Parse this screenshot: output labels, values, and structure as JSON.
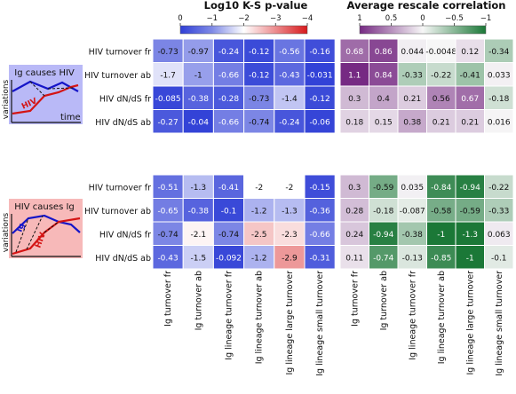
{
  "chart_data": [
    {
      "type": "heatmap",
      "title": "Log10 K-S p-value",
      "colorbar_ticks": [
        "0",
        "−1",
        "−2",
        "−3",
        "−4"
      ],
      "colorbar_range": [
        0,
        -4
      ],
      "colormap": [
        "#2f3fd6",
        "#ffffff",
        "#d7191c"
      ],
      "rows": [
        "HIV turnover fr",
        "HIV turnover ab",
        "HIV dN/dS fr",
        "HIV dN/dS ab"
      ],
      "columns": [
        "Ig turnover fr",
        "Ig turnover ab",
        "Ig lineage turnover fr",
        "Ig lineage turnover ab",
        "Ig lineage large turnover",
        "Ig lineage small turnover"
      ],
      "blocks": [
        {
          "name": "Ig causes HIV",
          "values": [
            [
              -0.73,
              -0.97,
              -0.24,
              -0.12,
              -0.56,
              -0.16
            ],
            [
              -1.7,
              -1,
              -0.66,
              -0.12,
              -0.43,
              -0.031
            ],
            [
              -0.085,
              -0.38,
              -0.28,
              -0.73,
              -1.4,
              -0.12
            ],
            [
              -0.27,
              -0.04,
              -0.66,
              -0.74,
              -0.24,
              -0.06
            ]
          ],
          "labels": [
            [
              "-0.73",
              "-0.97",
              "-0.24",
              "-0.12",
              "-0.56",
              "-0.16"
            ],
            [
              "-1.7",
              "-1",
              "-0.66",
              "-0.12",
              "-0.43",
              "-0.031"
            ],
            [
              "-0.085",
              "-0.38",
              "-0.28",
              "-0.73",
              "-1.4",
              "-0.12"
            ],
            [
              "-0.27",
              "-0.04",
              "-0.66",
              "-0.74",
              "-0.24",
              "-0.06"
            ]
          ]
        },
        {
          "name": "HIV causes Ig",
          "values": [
            [
              -0.51,
              -1.3,
              -0.41,
              -2,
              -2,
              -0.15
            ],
            [
              -0.65,
              -0.38,
              -0.1,
              -1.2,
              -1.3,
              -0.36
            ],
            [
              -0.74,
              -2.1,
              -0.74,
              -2.5,
              -2.3,
              -0.66
            ],
            [
              -0.43,
              -1.5,
              -0.092,
              -1.2,
              -2.9,
              -0.31
            ]
          ],
          "labels": [
            [
              "-0.51",
              "-1.3",
              "-0.41",
              "-2",
              "-2",
              "-0.15"
            ],
            [
              "-0.65",
              "-0.38",
              "-0.1",
              "-1.2",
              "-1.3",
              "-0.36"
            ],
            [
              "-0.74",
              "-2.1",
              "-0.74",
              "-2.5",
              "-2.3",
              "-0.66"
            ],
            [
              "-0.43",
              "-1.5",
              "-0.092",
              "-1.2",
              "-2.9",
              "-0.31"
            ]
          ]
        }
      ]
    },
    {
      "type": "heatmap",
      "title": "Average rescale correlation",
      "colorbar_ticks": [
        "1",
        "0.5",
        "0",
        "−0.5",
        "−1"
      ],
      "colorbar_range": [
        1,
        -1
      ],
      "colormap": [
        "#762a83",
        "#f7f7f7",
        "#1b7837"
      ],
      "rows": [
        "HIV turnover fr",
        "HIV turnover ab",
        "HIV dN/dS fr",
        "HIV dN/dS ab"
      ],
      "columns": [
        "Ig turnover fr",
        "Ig turnover ab",
        "Ig lineage turnover fr",
        "Ig lineage turnover ab",
        "Ig lineage large turnover",
        "Ig lineage small turnover"
      ],
      "blocks": [
        {
          "name": "Ig causes HIV",
          "values": [
            [
              0.68,
              0.86,
              0.044,
              -0.0048,
              0.12,
              -0.34
            ],
            [
              1.1,
              0.84,
              -0.33,
              -0.22,
              -0.41,
              0.033
            ],
            [
              0.3,
              0.4,
              0.21,
              0.56,
              0.67,
              -0.18
            ],
            [
              0.18,
              0.15,
              0.38,
              0.21,
              0.21,
              0.016
            ]
          ],
          "labels": [
            [
              "0.68",
              "0.86",
              "0.044",
              "-0.0048",
              "0.12",
              "-0.34"
            ],
            [
              "1.1",
              "0.84",
              "-0.33",
              "-0.22",
              "-0.41",
              "0.033"
            ],
            [
              "0.3",
              "0.4",
              "0.21",
              "0.56",
              "0.67",
              "-0.18"
            ],
            [
              "0.18",
              "0.15",
              "0.38",
              "0.21",
              "0.21",
              "0.016"
            ]
          ]
        },
        {
          "name": "HIV causes Ig",
          "values": [
            [
              0.3,
              -0.59,
              0.035,
              -0.84,
              -0.94,
              -0.22
            ],
            [
              0.28,
              -0.18,
              -0.087,
              -0.58,
              -0.59,
              -0.33
            ],
            [
              0.24,
              -0.94,
              -0.38,
              -1,
              -1.3,
              0.063
            ],
            [
              0.11,
              -0.74,
              -0.13,
              -0.85,
              -1,
              -0.1
            ]
          ],
          "labels": [
            [
              "0.3",
              "-0.59",
              "0.035",
              "-0.84",
              "-0.94",
              "-0.22"
            ],
            [
              "0.28",
              "-0.18",
              "-0.087",
              "-0.58",
              "-0.59",
              "-0.33"
            ],
            [
              "0.24",
              "-0.94",
              "-0.38",
              "-1",
              "-1.3",
              "0.063"
            ],
            [
              "0.11",
              "-0.74",
              "-0.13",
              "-0.85",
              "-1",
              "-0.1"
            ]
          ]
        }
      ]
    }
  ],
  "insets": [
    {
      "title": "Ig causes HIV",
      "ylabel": "variations",
      "xlabel": "time",
      "series": [
        "Ig",
        "HIV"
      ],
      "colors": {
        "panel": "#b9b9f7",
        "ig": "#1515c8",
        "hiv": "#d41414"
      }
    },
    {
      "title": "HIV causes Ig",
      "ylabel": "variations",
      "series": [
        "Ig",
        "HIV"
      ],
      "colors": {
        "panel": "#f7b9b9",
        "ig": "#1515c8",
        "hiv": "#d41414"
      }
    }
  ]
}
